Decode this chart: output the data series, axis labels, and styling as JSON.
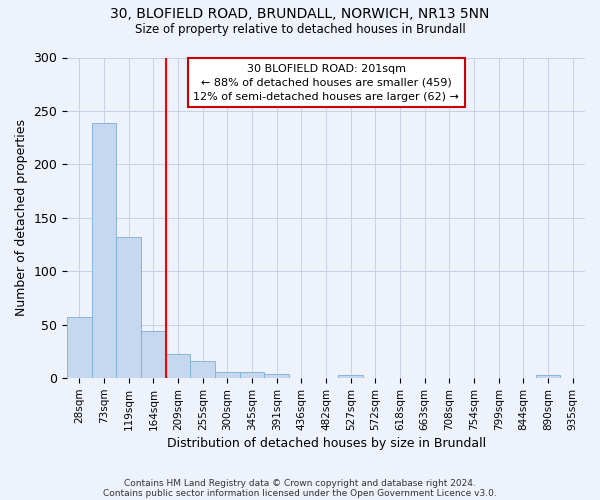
{
  "title1": "30, BLOFIELD ROAD, BRUNDALL, NORWICH, NR13 5NN",
  "title2": "Size of property relative to detached houses in Brundall",
  "xlabel": "Distribution of detached houses by size in Brundall",
  "ylabel": "Number of detached properties",
  "categories": [
    "28sqm",
    "73sqm",
    "119sqm",
    "164sqm",
    "209sqm",
    "255sqm",
    "300sqm",
    "345sqm",
    "391sqm",
    "436sqm",
    "482sqm",
    "527sqm",
    "572sqm",
    "618sqm",
    "663sqm",
    "708sqm",
    "754sqm",
    "799sqm",
    "844sqm",
    "890sqm",
    "935sqm"
  ],
  "values": [
    57,
    239,
    132,
    44,
    23,
    16,
    6,
    6,
    4,
    0,
    0,
    3,
    0,
    0,
    0,
    0,
    0,
    0,
    0,
    3,
    0
  ],
  "bar_color": "#c5d8f0",
  "bar_edge_color": "#7bafd4",
  "annotation_text": "30 BLOFIELD ROAD: 201sqm\n← 88% of detached houses are smaller (459)\n12% of semi-detached houses are larger (62) →",
  "vline_x": 4.0,
  "annotation_box_color": "#ffffff",
  "annotation_box_edge_color": "#cc0000",
  "footer1": "Contains HM Land Registry data © Crown copyright and database right 2024.",
  "footer2": "Contains public sector information licensed under the Open Government Licence v3.0.",
  "ylim": [
    0,
    300
  ],
  "background_color": "#eef2fb",
  "grid_color": "#c8d0e8"
}
